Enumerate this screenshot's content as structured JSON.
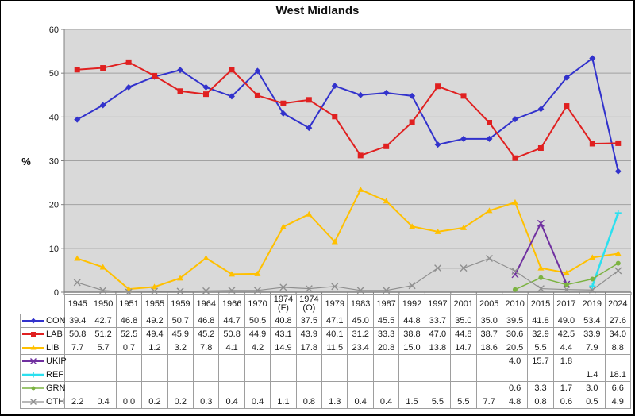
{
  "window": {
    "title": "West Midlands"
  },
  "colors": {
    "plot_bg": "#d9d9d9",
    "gridline": "#a2a2a2",
    "axis": "#808080",
    "table_border": "#9e9e9e",
    "frame": "#000000"
  },
  "chart_data": {
    "type": "line",
    "title": "West Midlands",
    "xlabel": "",
    "ylabel": "%",
    "ylim": [
      0,
      60
    ],
    "ytick_step": 10,
    "grid": "horizontal",
    "legend_position": "data-table-left",
    "categories": [
      "1945",
      "1950",
      "1951",
      "1955",
      "1959",
      "1964",
      "1966",
      "1970",
      "1974 (F)",
      "1974 (O)",
      "1979",
      "1983",
      "1987",
      "1992",
      "1997",
      "2001",
      "2005",
      "2010",
      "2015",
      "2017",
      "2019",
      "2024"
    ],
    "series": [
      {
        "name": "CON",
        "color": "#3232cc",
        "marker": "diamond",
        "width": 2,
        "values": [
          39.4,
          42.7,
          46.8,
          49.2,
          50.7,
          46.8,
          44.7,
          50.5,
          40.8,
          37.5,
          47.1,
          45.0,
          45.5,
          44.8,
          33.7,
          35.0,
          35.0,
          39.5,
          41.8,
          49.0,
          53.4,
          27.6
        ]
      },
      {
        "name": "LAB",
        "color": "#e02020",
        "marker": "square",
        "width": 2,
        "values": [
          50.8,
          51.2,
          52.5,
          49.4,
          45.9,
          45.2,
          50.8,
          44.9,
          43.1,
          43.9,
          40.1,
          31.2,
          33.3,
          38.8,
          47.0,
          44.8,
          38.7,
          30.6,
          32.9,
          42.5,
          33.9,
          34.0
        ]
      },
      {
        "name": "LIB",
        "color": "#ffc000",
        "marker": "triangle",
        "width": 2,
        "values": [
          7.7,
          5.7,
          0.7,
          1.2,
          3.2,
          7.8,
          4.1,
          4.2,
          14.9,
          17.8,
          11.5,
          23.4,
          20.8,
          15.0,
          13.8,
          14.7,
          18.6,
          20.5,
          5.5,
          4.4,
          7.9,
          8.8
        ]
      },
      {
        "name": "UKIP",
        "color": "#7030a0",
        "marker": "x",
        "width": 2,
        "values": [
          null,
          null,
          null,
          null,
          null,
          null,
          null,
          null,
          null,
          null,
          null,
          null,
          null,
          null,
          null,
          null,
          null,
          4.0,
          15.7,
          1.8,
          null,
          null
        ]
      },
      {
        "name": "REF",
        "color": "#2be0ef",
        "marker": "plus",
        "width": 2.5,
        "values": [
          null,
          null,
          null,
          null,
          null,
          null,
          null,
          null,
          null,
          null,
          null,
          null,
          null,
          null,
          null,
          null,
          null,
          null,
          null,
          null,
          1.4,
          18.1
        ]
      },
      {
        "name": "GRN",
        "color": "#7cb342",
        "marker": "circle",
        "width": 1.5,
        "values": [
          null,
          null,
          null,
          null,
          null,
          null,
          null,
          null,
          null,
          null,
          null,
          null,
          null,
          null,
          null,
          null,
          null,
          0.6,
          3.3,
          1.7,
          3.0,
          6.6
        ]
      },
      {
        "name": "OTH",
        "color": "#8f8f8f",
        "marker": "x",
        "width": 1.2,
        "values": [
          2.2,
          0.4,
          0.0,
          0.2,
          0.2,
          0.3,
          0.4,
          0.4,
          1.1,
          0.8,
          1.3,
          0.4,
          0.4,
          1.5,
          5.5,
          5.5,
          7.7,
          4.8,
          0.8,
          0.6,
          0.5,
          4.9
        ]
      }
    ]
  }
}
